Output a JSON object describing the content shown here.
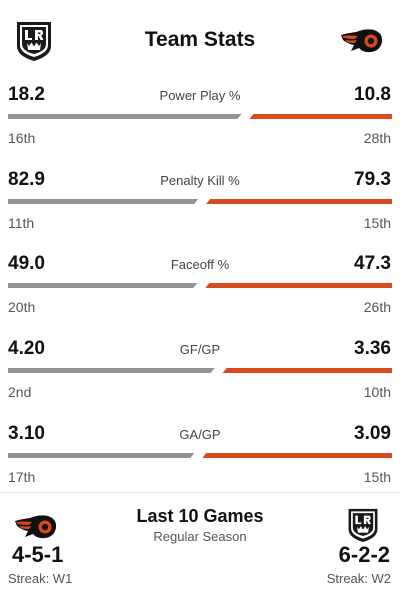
{
  "header": {
    "title": "Team Stats",
    "left_team_logo": "kings-crown-shield-icon",
    "right_team_logo": "flyers-logo-icon"
  },
  "colors": {
    "left_bar": "#8e9495",
    "right_bar": "#d8491e",
    "text": "#111111",
    "muted": "#555555"
  },
  "stats": [
    {
      "label": "Power Play %",
      "left": "18.2",
      "right": "10.8",
      "left_rank": "16th",
      "right_rank": "28th"
    },
    {
      "label": "Penalty Kill %",
      "left": "82.9",
      "right": "79.3",
      "left_rank": "11th",
      "right_rank": "15th"
    },
    {
      "label": "Faceoff %",
      "left": "49.0",
      "right": "47.3",
      "left_rank": "20th",
      "right_rank": "26th"
    },
    {
      "label": "GF/GP",
      "left": "4.20",
      "right": "3.36",
      "left_rank": "2nd",
      "right_rank": "10th"
    },
    {
      "label": "GA/GP",
      "left": "3.10",
      "right": "3.09",
      "left_rank": "17th",
      "right_rank": "15th"
    }
  ],
  "last10": {
    "title": "Last 10 Games",
    "subtitle": "Regular Season",
    "left_logo": "flyers-logo-icon",
    "right_logo": "kings-crown-shield-icon",
    "left_record": "4-5-1",
    "right_record": "6-2-2",
    "left_streak": "Streak: W1",
    "right_streak": "Streak: W2"
  }
}
